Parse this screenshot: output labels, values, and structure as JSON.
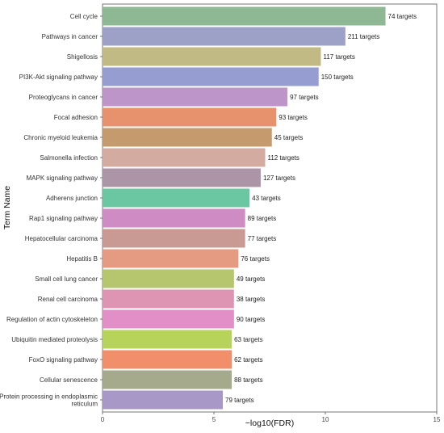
{
  "chart_data": {
    "type": "bar",
    "orientation": "horizontal",
    "title": "",
    "xlabel": "−log10(FDR)",
    "ylabel": "Term Name",
    "xlim": [
      0,
      15
    ],
    "xticks": [
      "0",
      "5",
      "10",
      "15"
    ],
    "grid": false,
    "legend": "none",
    "categories": [
      [
        "Cell cycle"
      ],
      [
        "Pathways in cancer"
      ],
      [
        "Shigellosis"
      ],
      [
        "PI3K-Akt signaling pathway"
      ],
      [
        "Proteoglycans in cancer"
      ],
      [
        "Focal adhesion"
      ],
      [
        "Chronic myeloid leukemia"
      ],
      [
        "Salmonella infection"
      ],
      [
        "MAPK signaling pathway"
      ],
      [
        "Adherens junction"
      ],
      [
        "Rap1 signaling pathway"
      ],
      [
        "Hepatocellular carcinoma"
      ],
      [
        "Hepatitis B"
      ],
      [
        "Small cell lung cancer"
      ],
      [
        "Renal cell carcinoma"
      ],
      [
        "Regulation of actin cytoskeleton"
      ],
      [
        "Ubiquitin mediated proteolysis"
      ],
      [
        "FoxO signaling pathway"
      ],
      [
        "Cellular senescence"
      ],
      [
        "Protein processing in endoplasmic",
        "reticulum"
      ]
    ],
    "values": [
      12.7,
      10.9,
      9.8,
      9.7,
      8.3,
      7.8,
      7.6,
      7.3,
      7.1,
      6.6,
      6.4,
      6.4,
      6.1,
      5.9,
      5.9,
      5.9,
      5.8,
      5.8,
      5.8,
      5.4
    ],
    "labels": [
      "74 targets",
      "211 targets",
      "117 targets",
      "150 targets",
      "97 targets",
      "93 targets",
      "45 targets",
      "112 targets",
      "127 targets",
      "43 targets",
      "89 targets",
      "77 targets",
      "76 targets",
      "49 targets",
      "38 targets",
      "90 targets",
      "63 targets",
      "62 targets",
      "88 targets",
      "79 targets"
    ],
    "colors": [
      "#8db893",
      "#9da0c7",
      "#c2ba84",
      "#969dd0",
      "#bd95c9",
      "#e8926d",
      "#c59b6d",
      "#d4aba0",
      "#ad95a8",
      "#6ac7a1",
      "#cf8bc3",
      "#c99a93",
      "#e59b82",
      "#b5c66f",
      "#de95b4",
      "#e28fc7",
      "#b8d359",
      "#f18f6b",
      "#a5aa8c",
      "#a898c8"
    ]
  }
}
